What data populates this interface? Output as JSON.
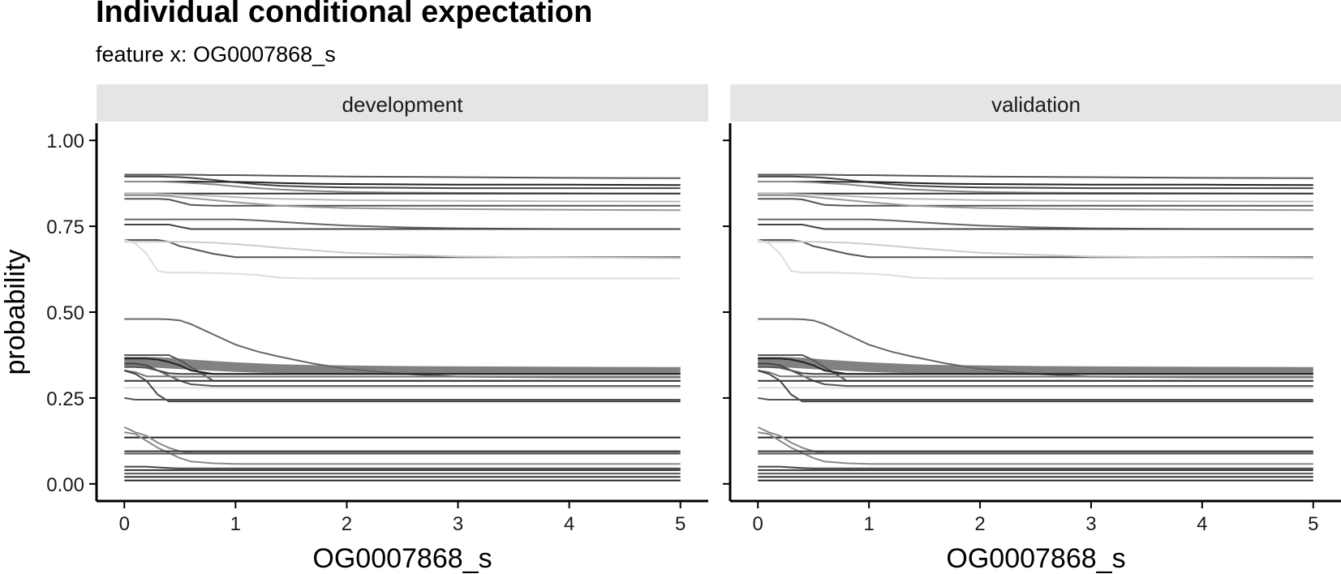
{
  "chart_data": {
    "type": "line",
    "title": "Individual conditional expectation",
    "subtitle": "feature x: OG0007868_s",
    "xlabel": "OG0007868_s",
    "ylabel": "probability",
    "xlim": [
      -0.25,
      5.25
    ],
    "ylim": [
      -0.05,
      1.05
    ],
    "x_ticks": [
      0,
      1,
      2,
      3,
      4,
      5
    ],
    "x_tick_labels": [
      "0",
      "1",
      "2",
      "3",
      "4",
      "5"
    ],
    "y_ticks": [
      0,
      0.25,
      0.5,
      0.75,
      1
    ],
    "y_tick_labels": [
      "0.00",
      "0.25",
      "0.50",
      "0.75",
      "1.00"
    ],
    "grid": false,
    "legend": "none",
    "facets": [
      "development",
      "validation"
    ],
    "x": [
      0,
      0.1,
      0.2,
      0.3,
      0.4,
      0.5,
      0.6,
      0.8,
      1.0,
      1.2,
      1.4,
      1.7,
      2.0,
      2.5,
      3.0,
      4.0,
      5.0
    ],
    "band": {
      "upper": [
        0.37,
        0.37,
        0.37,
        0.369,
        0.367,
        0.365,
        0.362,
        0.358,
        0.354,
        0.351,
        0.348,
        0.346,
        0.345,
        0.343,
        0.342,
        0.341,
        0.34
      ],
      "lower": [
        0.34,
        0.34,
        0.339,
        0.338,
        0.336,
        0.334,
        0.332,
        0.329,
        0.326,
        0.324,
        0.322,
        0.321,
        0.32,
        0.32,
        0.32,
        0.32,
        0.32
      ],
      "color": "#7a7a7a"
    },
    "series": [
      {
        "color": "#555555",
        "values": [
          0.9,
          0.9,
          0.9,
          0.9,
          0.9,
          0.9,
          0.9,
          0.899,
          0.899,
          0.898,
          0.897,
          0.896,
          0.895,
          0.894,
          0.893,
          0.891,
          0.89
        ]
      },
      {
        "color": "#444444",
        "values": [
          0.895,
          0.895,
          0.895,
          0.895,
          0.894,
          0.893,
          0.891,
          0.885,
          0.878,
          0.872,
          0.868,
          0.865,
          0.863,
          0.862,
          0.861,
          0.861,
          0.861
        ]
      },
      {
        "color": "#222222",
        "values": [
          0.88,
          0.88,
          0.88,
          0.88,
          0.88,
          0.88,
          0.88,
          0.879,
          0.879,
          0.878,
          0.876,
          0.874,
          0.873,
          0.872,
          0.871,
          0.871,
          0.87
        ]
      },
      {
        "color": "#888888",
        "values": [
          0.88,
          0.88,
          0.88,
          0.88,
          0.879,
          0.878,
          0.876,
          0.872,
          0.866,
          0.861,
          0.857,
          0.853,
          0.85,
          0.848,
          0.847,
          0.846,
          0.845
        ]
      },
      {
        "color": "#333333",
        "values": [
          0.845,
          0.845,
          0.845,
          0.845,
          0.845,
          0.845,
          0.845,
          0.845,
          0.845,
          0.845,
          0.845,
          0.845,
          0.845,
          0.845,
          0.845,
          0.845,
          0.845
        ]
      },
      {
        "color": "#bbbbbb",
        "values": [
          0.845,
          0.845,
          0.845,
          0.844,
          0.843,
          0.842,
          0.841,
          0.838,
          0.835,
          0.832,
          0.83,
          0.828,
          0.826,
          0.825,
          0.824,
          0.823,
          0.822
        ]
      },
      {
        "color": "#555555",
        "values": [
          0.83,
          0.83,
          0.83,
          0.83,
          0.828,
          0.82,
          0.812,
          0.81,
          0.81,
          0.81,
          0.81,
          0.81,
          0.81,
          0.81,
          0.81,
          0.81,
          0.81
        ]
      },
      {
        "color": "#999999",
        "values": [
          0.84,
          0.84,
          0.84,
          0.84,
          0.838,
          0.835,
          0.832,
          0.826,
          0.82,
          0.815,
          0.81,
          0.806,
          0.803,
          0.801,
          0.8,
          0.798,
          0.797
        ]
      },
      {
        "color": "#666666",
        "values": [
          0.77,
          0.77,
          0.77,
          0.77,
          0.77,
          0.77,
          0.77,
          0.77,
          0.77,
          0.767,
          0.763,
          0.757,
          0.752,
          0.747,
          0.744,
          0.742,
          0.742
        ]
      },
      {
        "color": "#444444",
        "values": [
          0.755,
          0.755,
          0.755,
          0.755,
          0.755,
          0.748,
          0.742,
          0.742,
          0.742,
          0.742,
          0.742,
          0.742,
          0.742,
          0.742,
          0.742,
          0.742,
          0.742
        ]
      },
      {
        "color": "#555555",
        "values": [
          0.71,
          0.71,
          0.71,
          0.71,
          0.705,
          0.692,
          0.685,
          0.67,
          0.66,
          0.66,
          0.66,
          0.66,
          0.66,
          0.66,
          0.66,
          0.66,
          0.66
        ]
      },
      {
        "color": "#cccccc",
        "values": [
          0.705,
          0.705,
          0.705,
          0.705,
          0.705,
          0.705,
          0.704,
          0.702,
          0.698,
          0.693,
          0.687,
          0.68,
          0.673,
          0.667,
          0.662,
          0.659,
          0.657
        ]
      },
      {
        "color": "#dddddd",
        "values": [
          0.71,
          0.7,
          0.67,
          0.62,
          0.615,
          0.615,
          0.615,
          0.614,
          0.612,
          0.608,
          0.6,
          0.598,
          0.598,
          0.598,
          0.598,
          0.598,
          0.598
        ]
      },
      {
        "color": "#666666",
        "values": [
          0.48,
          0.48,
          0.48,
          0.48,
          0.479,
          0.476,
          0.465,
          0.435,
          0.405,
          0.385,
          0.37,
          0.35,
          0.335,
          0.32,
          0.312,
          0.31,
          0.31
        ]
      },
      {
        "color": "#555555",
        "values": [
          0.375,
          0.375,
          0.375,
          0.375,
          0.375,
          0.36,
          0.34,
          0.3,
          0.3,
          0.3,
          0.3,
          0.3,
          0.3,
          0.3,
          0.3,
          0.3,
          0.3
        ]
      },
      {
        "color": "#444444",
        "values": [
          0.35,
          0.35,
          0.345,
          0.33,
          0.322,
          0.32,
          0.32,
          0.32,
          0.32,
          0.32,
          0.32,
          0.32,
          0.32,
          0.32,
          0.32,
          0.32,
          0.32
        ]
      },
      {
        "color": "#222222",
        "values": [
          0.365,
          0.365,
          0.365,
          0.362,
          0.355,
          0.345,
          0.33,
          0.32,
          0.32,
          0.32,
          0.32,
          0.32,
          0.32,
          0.32,
          0.32,
          0.32,
          0.32
        ]
      },
      {
        "color": "#555555",
        "values": [
          0.34,
          0.34,
          0.338,
          0.33,
          0.315,
          0.3,
          0.29,
          0.285,
          0.285,
          0.285,
          0.285,
          0.285,
          0.285,
          0.285,
          0.285,
          0.285,
          0.285
        ]
      },
      {
        "color": "#777777",
        "values": [
          0.33,
          0.325,
          0.313,
          0.313,
          0.313,
          0.312,
          0.312,
          0.312,
          0.312,
          0.312,
          0.312,
          0.312,
          0.312,
          0.312,
          0.312,
          0.312,
          0.312
        ]
      },
      {
        "color": "#333333",
        "values": [
          0.3,
          0.3,
          0.3,
          0.3,
          0.3,
          0.3,
          0.3,
          0.3,
          0.3,
          0.3,
          0.3,
          0.3,
          0.3,
          0.3,
          0.3,
          0.3,
          0.3
        ]
      },
      {
        "color": "#dddddd",
        "values": [
          0.28,
          0.28,
          0.28,
          0.28,
          0.28,
          0.28,
          0.28,
          0.28,
          0.28,
          0.28,
          0.28,
          0.28,
          0.28,
          0.28,
          0.28,
          0.28,
          0.28
        ]
      },
      {
        "color": "#444444",
        "values": [
          0.33,
          0.32,
          0.3,
          0.26,
          0.24,
          0.24,
          0.24,
          0.24,
          0.24,
          0.24,
          0.24,
          0.24,
          0.24,
          0.24,
          0.24,
          0.24,
          0.24
        ]
      },
      {
        "color": "#555555",
        "values": [
          0.25,
          0.245,
          0.245,
          0.245,
          0.245,
          0.245,
          0.245,
          0.245,
          0.245,
          0.245,
          0.245,
          0.245,
          0.245,
          0.245,
          0.245,
          0.245,
          0.245
        ]
      },
      {
        "color": "#222222",
        "values": [
          0.135,
          0.135,
          0.135,
          0.135,
          0.135,
          0.135,
          0.135,
          0.135,
          0.135,
          0.135,
          0.135,
          0.135,
          0.135,
          0.135,
          0.135,
          0.135,
          0.135
        ]
      },
      {
        "color": "#888888",
        "values": [
          0.165,
          0.15,
          0.14,
          0.12,
          0.105,
          0.095,
          0.09,
          0.09,
          0.09,
          0.09,
          0.09,
          0.09,
          0.09,
          0.09,
          0.09,
          0.09,
          0.09
        ]
      },
      {
        "color": "#888888",
        "values": [
          0.15,
          0.145,
          0.125,
          0.105,
          0.09,
          0.075,
          0.065,
          0.06,
          0.058,
          0.058,
          0.058,
          0.058,
          0.058,
          0.058,
          0.058,
          0.058,
          0.058
        ]
      },
      {
        "color": "#333333",
        "values": [
          0.095,
          0.095,
          0.095,
          0.095,
          0.095,
          0.095,
          0.095,
          0.095,
          0.095,
          0.095,
          0.095,
          0.095,
          0.095,
          0.095,
          0.095,
          0.095,
          0.095
        ]
      },
      {
        "color": "#555555",
        "values": [
          0.088,
          0.088,
          0.088,
          0.088,
          0.088,
          0.088,
          0.088,
          0.088,
          0.088,
          0.088,
          0.088,
          0.088,
          0.088,
          0.088,
          0.088,
          0.088,
          0.088
        ]
      },
      {
        "color": "#444444",
        "values": [
          0.05,
          0.05,
          0.05,
          0.048,
          0.046,
          0.045,
          0.045,
          0.045,
          0.045,
          0.045,
          0.045,
          0.045,
          0.045,
          0.045,
          0.045,
          0.045,
          0.045
        ]
      },
      {
        "color": "#333333",
        "values": [
          0.04,
          0.04,
          0.04,
          0.04,
          0.04,
          0.04,
          0.04,
          0.04,
          0.04,
          0.04,
          0.04,
          0.04,
          0.04,
          0.04,
          0.04,
          0.04,
          0.04
        ]
      },
      {
        "color": "#555555",
        "values": [
          0.03,
          0.03,
          0.03,
          0.03,
          0.03,
          0.03,
          0.03,
          0.03,
          0.03,
          0.03,
          0.03,
          0.03,
          0.03,
          0.03,
          0.03,
          0.03,
          0.03
        ]
      },
      {
        "color": "#333333",
        "values": [
          0.02,
          0.02,
          0.02,
          0.02,
          0.02,
          0.02,
          0.02,
          0.02,
          0.02,
          0.02,
          0.02,
          0.02,
          0.02,
          0.02,
          0.02,
          0.02,
          0.02
        ]
      },
      {
        "color": "#222222",
        "values": [
          0.01,
          0.01,
          0.01,
          0.01,
          0.01,
          0.01,
          0.01,
          0.01,
          0.01,
          0.01,
          0.01,
          0.01,
          0.01,
          0.01,
          0.01,
          0.01,
          0.01
        ]
      }
    ]
  },
  "colors": {
    "strip_background": "#e5e5e5",
    "axis": "#000000"
  }
}
